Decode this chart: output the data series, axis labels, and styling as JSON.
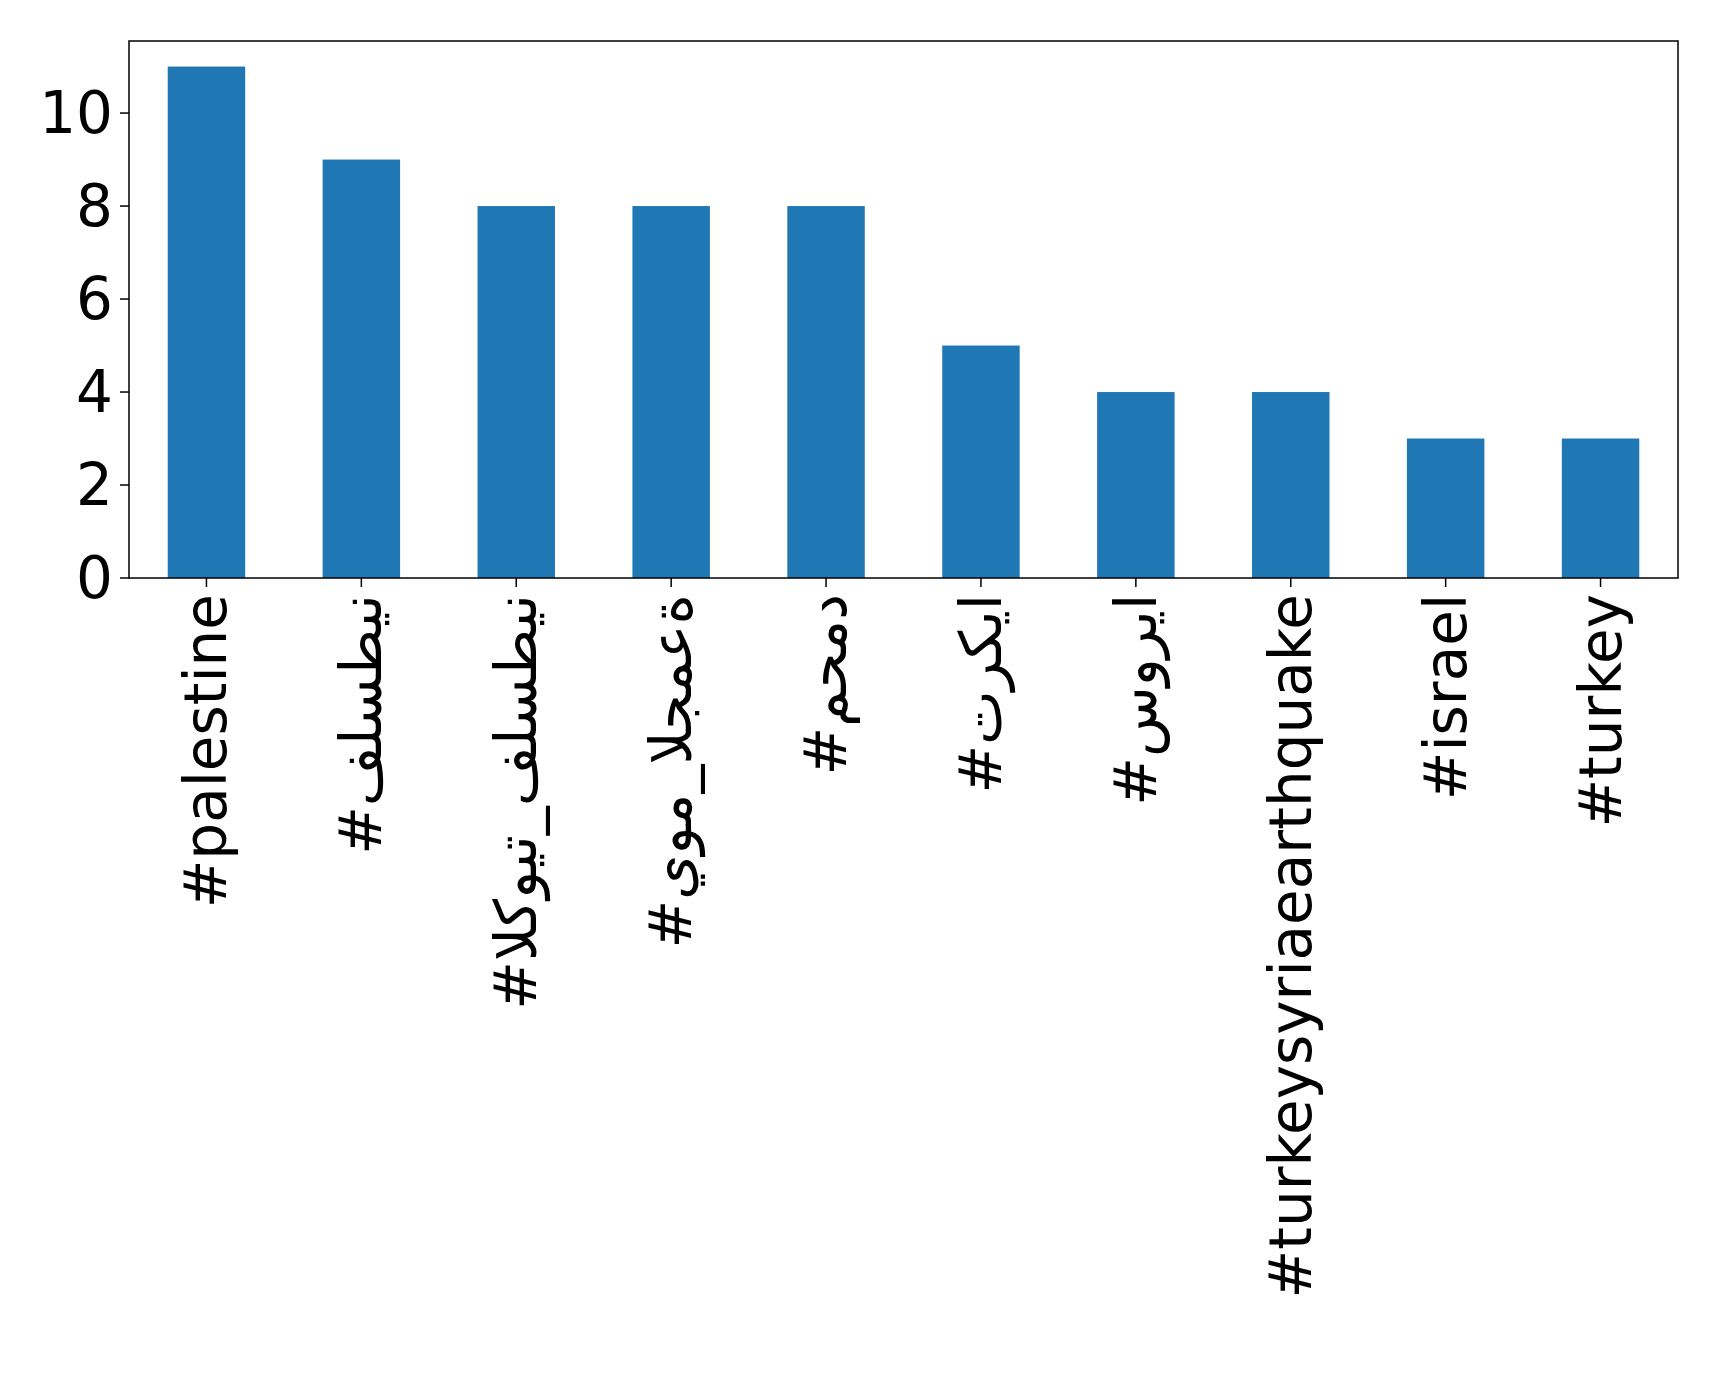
{
  "chart_data": {
    "type": "bar",
    "categories": [
      "#palestine",
      "#فلسطين",
      "#الكويت_فلسطين",
      "#يوم_الجمعة",
      "#محمد",
      "#تركيا",
      "#سوريا",
      "#turkeysyriaearthquake",
      "#israel",
      "#turkey"
    ],
    "values": [
      11,
      9,
      8,
      8,
      8,
      5,
      4,
      4,
      3,
      3
    ],
    "color": "#1f77b4",
    "ylim": [
      0,
      11.55
    ],
    "yticks": [
      0,
      2,
      4,
      6,
      8,
      10
    ]
  }
}
